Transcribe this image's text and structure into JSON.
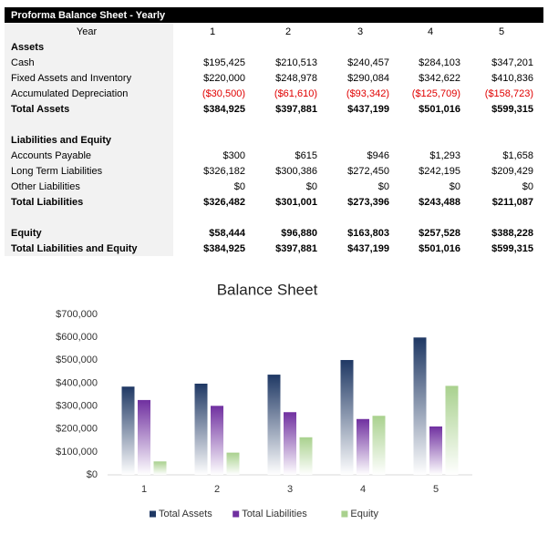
{
  "table": {
    "title": "Proforma Balance Sheet - Yearly",
    "header": [
      "Year",
      "1",
      "2",
      "3",
      "4",
      "5"
    ],
    "sections": [
      {
        "rows": [
          {
            "label": "Assets",
            "bold": true
          },
          {
            "label": "Cash",
            "values": [
              "$195,425",
              "$210,513",
              "$240,457",
              "$284,103",
              "$347,201"
            ]
          },
          {
            "label": "Fixed Assets and Inventory",
            "values": [
              "$220,000",
              "$248,978",
              "$290,084",
              "$342,622",
              "$410,836"
            ]
          },
          {
            "label": "Accumulated Depreciation",
            "values": [
              "($30,500)",
              "($61,610)",
              "($93,342)",
              "($125,709)",
              "($158,723)"
            ],
            "color": "#e00000"
          },
          {
            "label": "Total Assets",
            "bold": true,
            "values": [
              "$384,925",
              "$397,881",
              "$437,199",
              "$501,016",
              "$599,315"
            ]
          }
        ]
      },
      {
        "rows": [
          {
            "label": "Liabilities and Equity",
            "bold": true
          },
          {
            "label": "Accounts Payable",
            "values": [
              "$300",
              "$615",
              "$946",
              "$1,293",
              "$1,658"
            ]
          },
          {
            "label": "Long Term Liabilities",
            "values": [
              "$326,182",
              "$300,386",
              "$272,450",
              "$242,195",
              "$209,429"
            ]
          },
          {
            "label": "Other Liabilities",
            "values": [
              "$0",
              "$0",
              "$0",
              "$0",
              "$0"
            ]
          },
          {
            "label": "Total Liabilities",
            "bold": true,
            "values": [
              "$326,482",
              "$301,001",
              "$273,396",
              "$243,488",
              "$211,087"
            ]
          }
        ]
      },
      {
        "rows": [
          {
            "label": "Equity",
            "bold": true,
            "values": [
              "$58,444",
              "$96,880",
              "$163,803",
              "$257,528",
              "$388,228"
            ]
          },
          {
            "label": "Total Liabilities and Equity",
            "bold": true,
            "values": [
              "$384,925",
              "$397,881",
              "$437,199",
              "$501,016",
              "$599,315"
            ]
          }
        ]
      }
    ]
  },
  "chart_data": {
    "type": "bar",
    "title": "Balance Sheet",
    "categories": [
      "1",
      "2",
      "3",
      "4",
      "5"
    ],
    "series": [
      {
        "name": "Total Assets",
        "color": "#1f3864",
        "values": [
          384925,
          397881,
          437199,
          501016,
          599315
        ]
      },
      {
        "name": "Total Liabilities",
        "color": "#7030a0",
        "values": [
          326482,
          301001,
          273396,
          243488,
          211087
        ]
      },
      {
        "name": "Equity",
        "color": "#a9d18e",
        "values": [
          58444,
          96880,
          163803,
          257528,
          388228
        ]
      }
    ],
    "ylim": [
      0,
      700000
    ],
    "yticks": [
      {
        "value": 0,
        "label": "$0"
      },
      {
        "value": 100000,
        "label": "$100,000"
      },
      {
        "value": 200000,
        "label": "$200,000"
      },
      {
        "value": 300000,
        "label": "$300,000"
      },
      {
        "value": 400000,
        "label": "$400,000"
      },
      {
        "value": 500000,
        "label": "$500,000"
      },
      {
        "value": 600000,
        "label": "$600,000"
      },
      {
        "value": 700000,
        "label": "$700,000"
      }
    ],
    "legend": "bottom"
  }
}
